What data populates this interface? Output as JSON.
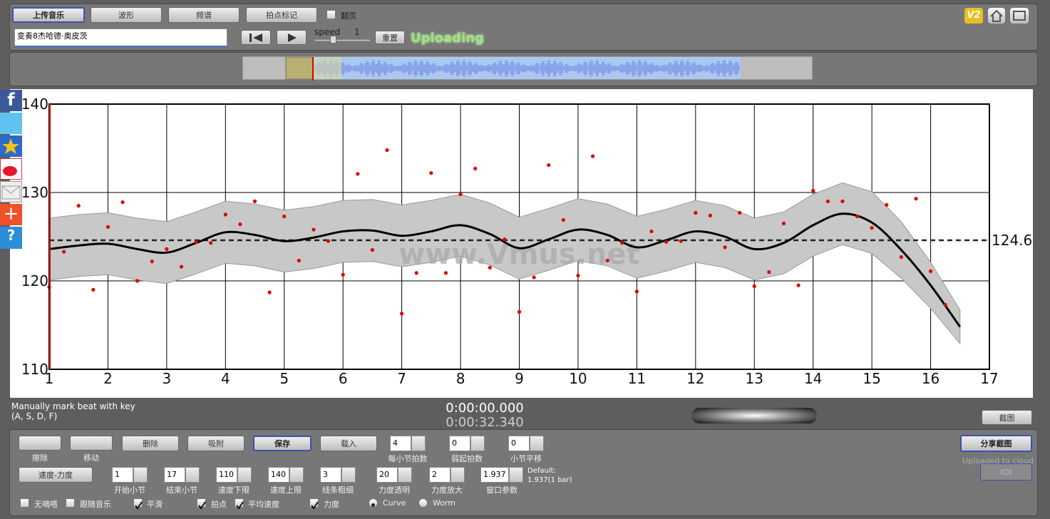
{
  "toolbar": {
    "buttons": [
      "上传音乐",
      "波形",
      "频谱",
      "拍点标记"
    ],
    "page_flip": "翻页",
    "file": "变奏8杰哈德·奥皮茨",
    "speed_label": "speed",
    "speed": 1,
    "reset": "重置",
    "status": "Uploading",
    "version": "V2"
  },
  "hint": [
    "Manually mark beat with key",
    "(A, S, D, F)"
  ],
  "time": {
    "current": "0:00:00.000",
    "total": "0:00:32.340"
  },
  "screenshot": "截图",
  "tools": [
    "擦除",
    "移动"
  ],
  "buttons": [
    "删除",
    "吸附",
    "保存",
    "载入"
  ],
  "fields_row1": [
    {
      "label": "每小节拍数",
      "value": 4
    },
    {
      "label": "弱起拍数",
      "value": 0
    },
    {
      "label": "小节平移",
      "value": 0
    }
  ],
  "share": "分享截图",
  "cloud": "Uploaded to cloud",
  "ioi": "IOI",
  "mode": "速度-力度",
  "fields_row2": [
    {
      "label": "开始小节",
      "value": 1
    },
    {
      "label": "结束小节",
      "value": 17
    },
    {
      "label": "速度下限",
      "value": 110
    },
    {
      "label": "速度上限",
      "value": 140
    },
    {
      "label": "线条粗细",
      "value": 3
    },
    {
      "label": "力度透明",
      "value": 20
    },
    {
      "label": "力度放大",
      "value": 2
    },
    {
      "label": "窗口参数",
      "value": 1.937
    }
  ],
  "default_note": [
    "Default:",
    "1.937(1 bar)"
  ],
  "options": [
    {
      "label": "无嘀嗒",
      "checked": false
    },
    {
      "label": "跟随音乐",
      "checked": false
    },
    {
      "label": "平滑",
      "checked": true
    },
    {
      "label": "拍点",
      "checked": true
    },
    {
      "label": "平均速度",
      "checked": true
    },
    {
      "label": "力度",
      "checked": true
    }
  ],
  "radios": [
    {
      "label": "Curve",
      "selected": true
    },
    {
      "label": "Worm",
      "selected": false
    }
  ],
  "chart_data": {
    "type": "scatter",
    "xlim": [
      1,
      17
    ],
    "ylim": [
      110,
      140
    ],
    "xticks": [
      1,
      2,
      3,
      4,
      5,
      6,
      7,
      8,
      9,
      10,
      11,
      12,
      13,
      14,
      15,
      16,
      17
    ],
    "yticks": [
      110,
      120,
      130,
      140
    ],
    "grid": true,
    "x": [
      1,
      1.25,
      1.5,
      1.75,
      2,
      2.25,
      2.5,
      2.75,
      3,
      3.25,
      3.5,
      3.75,
      4,
      4.25,
      4.5,
      4.75,
      5,
      5.25,
      5.5,
      5.75,
      6,
      6.25,
      6.5,
      6.75,
      7,
      7.25,
      7.5,
      7.75,
      8,
      8.25,
      8.5,
      8.75,
      9,
      9.25,
      9.5,
      9.75,
      10,
      10.25,
      10.5,
      10.75,
      11,
      11.25,
      11.5,
      11.75,
      12,
      12.25,
      12.5,
      12.75,
      13,
      13.25,
      13.5,
      13.75,
      14,
      14.25,
      14.5,
      14.75,
      15,
      15.25,
      15.5,
      15.75,
      16,
      16.25
    ],
    "series": [
      {
        "color": "#e00000",
        "values": [
          119.3,
          123.3,
          128.5,
          119.0,
          126.1,
          128.9,
          120.0,
          122.2,
          123.6,
          121.6,
          124.4,
          124.3,
          127.5,
          126.4,
          129.0,
          118.7,
          127.3,
          122.3,
          125.8,
          124.5,
          120.7,
          132.1,
          123.5,
          134.8,
          116.3,
          120.9,
          132.2,
          120.9,
          129.8,
          132.7,
          121.5,
          124.7,
          116.5,
          120.4,
          133.1,
          126.9,
          120.6,
          134.1,
          122.3,
          124.3,
          118.8,
          125.6,
          124.4,
          124.5,
          127.7,
          127.4,
          123.8,
          127.7,
          119.4,
          121.0,
          126.5,
          119.5,
          130.2,
          129.0,
          129.0,
          127.3,
          126.0,
          128.6,
          122.7,
          129.3,
          121.1,
          117.3
        ]
      }
    ],
    "smooth": {
      "color": "#000000",
      "band_color": "#c8c8c8",
      "x": [
        1,
        1.5,
        2,
        2.5,
        3,
        3.5,
        4,
        4.5,
        5,
        5.5,
        6,
        6.5,
        7,
        7.5,
        8,
        8.5,
        9,
        9.5,
        10,
        10.5,
        11,
        11.5,
        12,
        12.5,
        13,
        13.5,
        14,
        14.5,
        15,
        15.5,
        16,
        16.5
      ],
      "values": [
        123.6,
        124.0,
        124.2,
        123.6,
        123.2,
        124.3,
        125.5,
        125.2,
        124.5,
        124.9,
        125.6,
        125.7,
        125.1,
        125.6,
        126.3,
        125.3,
        123.7,
        124.7,
        125.8,
        125.2,
        123.8,
        124.6,
        125.6,
        125.0,
        123.6,
        124.3,
        126.3,
        127.6,
        126.6,
        123.5,
        119.5,
        114.8
      ],
      "upper": [
        127.1,
        127.5,
        127.7,
        127.1,
        126.7,
        127.8,
        129.0,
        128.7,
        128.0,
        128.4,
        129.1,
        129.2,
        128.6,
        129.1,
        129.8,
        128.8,
        127.2,
        128.2,
        129.3,
        128.7,
        127.3,
        128.1,
        129.1,
        128.5,
        127.1,
        127.8,
        129.8,
        131.1,
        130.1,
        126.7,
        122.1,
        116.7
      ],
      "lower": [
        120.1,
        120.5,
        120.7,
        120.1,
        119.7,
        120.8,
        122.0,
        121.7,
        121.0,
        121.4,
        122.1,
        122.2,
        121.6,
        122.1,
        122.8,
        121.8,
        120.2,
        121.2,
        122.3,
        121.7,
        120.3,
        121.1,
        122.1,
        121.5,
        120.1,
        120.8,
        122.8,
        124.1,
        123.1,
        120.3,
        116.9,
        112.9
      ]
    },
    "mean": 124.6,
    "watermark": "www.Vmus.net"
  }
}
